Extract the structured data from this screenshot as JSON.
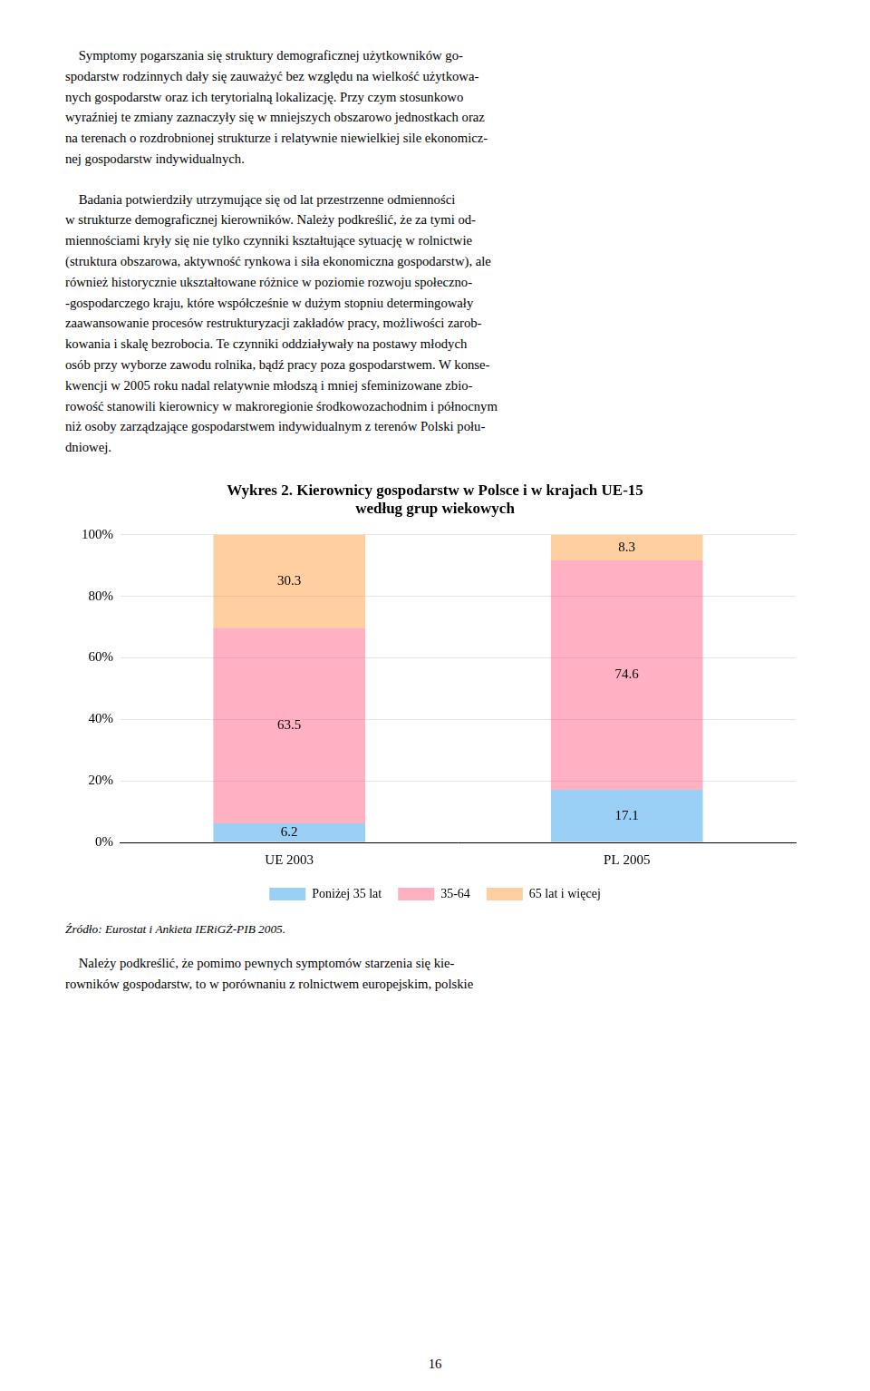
{
  "chart_data": {
    "type": "bar",
    "title": [
      "Wykres 2. Kierownicy gospodarstw w Polsce i w krajach UE-15",
      "według grup wiekowych"
    ],
    "categories": [
      "UE 2003",
      "PL 2005"
    ],
    "series": [
      {
        "name": "Poniżej 35 lat",
        "values": [
          6.2,
          17.1
        ]
      },
      {
        "name": "35-64",
        "values": [
          63.5,
          74.6
        ]
      },
      {
        "name": "65 lat i więcej",
        "values": [
          30.3,
          8.3
        ]
      }
    ],
    "stacked": true,
    "data_labels": true,
    "ylim": [
      0,
      100
    ],
    "yticks": [
      {
        "value": 0,
        "label": "0%"
      },
      {
        "value": 20,
        "label": "20%"
      },
      {
        "value": 40,
        "label": "40%"
      },
      {
        "value": 60,
        "label": "60%"
      },
      {
        "value": 80,
        "label": "80%"
      },
      {
        "value": 100,
        "label": "100%"
      }
    ],
    "grid": true,
    "legend": "bottom",
    "source": "Źródło: Eurostat i Ankieta IERiGŻ-PIB 2005."
  },
  "page_text": {
    "above": [
      "    Symptomy pogarszania się struktury demograficznej użytkowników go-\nspodarstw rodzinnych dały się zauważyć bez względu na wielkość użytkowa-\nnych gospodarstw oraz ich terytorialną lokalizację. Przy czym stosunkowo\nwyraźniej te zmiany zaznaczyły się w mniejszych obszarowo jednostkach oraz\nna terenach o rozdrobnionej strukturze i relatywnie niewielkiej sile ekonomicz-\nnej gospodarstw indywidualnych.",
      "    Badania potwierdziły utrzymujące się od lat przestrzenne odmienności\nw strukturze demograficznej kierowników. Należy podkreślić, że za tymi od-\nmiennościami kryły się nie tylko czynniki kształtujące sytuację w rolnictwie\n(struktura obszarowa, aktywność rynkowa i siła ekonomiczna gospodarstw), ale\nrównież historycznie ukształtowane różnice w poziomie rozwoju społeczno-\n-gospodarczego kraju, które współcześnie w dużym stopniu determingowały\nzaawansowanie procesów restrukturyzacji zakładów pracy, możliwości zarob-\nkowania i skalę bezrobocia. Te czynniki oddziaływały na postawy młodych\nosób przy wyborze zawodu rolnika, bądź pracy poza gospodarstwem. W konse-\nkwencji w 2005 roku nadal relatywnie młodszą i mniej sfeminizowane zbio-\nrowość stanowili kierownicy w makroregionie środkowozachodnim i północnym\nniż osoby zarządzające gospodarstwem indywidualnym z terenów Polski połu-\ndniowej."
    ],
    "below": [
      "    Należy podkreślić, że pomimo pewnych symptomów starzenia się kie-\nrowników gospodarstw, to w porównaniu z rolnictwem europejskim, polskie"
    ],
    "page_number": "16"
  }
}
